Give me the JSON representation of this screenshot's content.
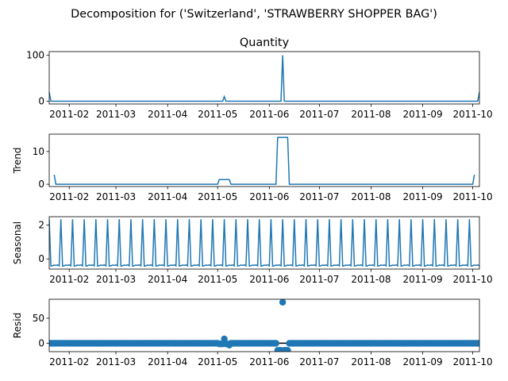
{
  "suptitle": "Decomposition for ('Switzerland', 'STRAWBERRY SHOPPER BAG')",
  "x_tick_labels": [
    "2011-02",
    "2011-03",
    "2011-04",
    "2011-05",
    "2011-06",
    "2011-07",
    "2011-08",
    "2011-09",
    "2011-10"
  ],
  "colors": {
    "line": "#1f77b4",
    "resid_zero": "#000000"
  },
  "chart_data": [
    {
      "type": "line",
      "title": "Quantity",
      "ylabel": "",
      "x_start": "2011-01-20",
      "x_end": "2011-10-05",
      "ylim": [
        -6,
        108
      ],
      "yticks": [
        0,
        100
      ],
      "series": [
        {
          "values_default": 0,
          "points": [
            {
              "x": "2011-01-20",
              "y": 20
            },
            {
              "x": "2011-01-21",
              "y": 0
            },
            {
              "x": "2011-05-04",
              "y": 0
            },
            {
              "x": "2011-05-05",
              "y": 10
            },
            {
              "x": "2011-05-06",
              "y": 0
            },
            {
              "x": "2011-06-08",
              "y": 0
            },
            {
              "x": "2011-06-09",
              "y": 100
            },
            {
              "x": "2011-06-10",
              "y": 0
            },
            {
              "x": "2011-10-04",
              "y": 0
            },
            {
              "x": "2011-10-05",
              "y": 20
            }
          ]
        }
      ]
    },
    {
      "type": "line",
      "title": "",
      "ylabel": "Trend",
      "ylim": [
        -0.7,
        15.3
      ],
      "yticks": [
        0,
        10
      ],
      "series": [
        {
          "points": [
            {
              "x": "2011-01-23",
              "y": 2.9
            },
            {
              "x": "2011-01-24",
              "y": 0
            },
            {
              "x": "2011-05-01",
              "y": 0
            },
            {
              "x": "2011-05-02",
              "y": 1.43
            },
            {
              "x": "2011-05-08",
              "y": 1.43
            },
            {
              "x": "2011-05-09",
              "y": 0
            },
            {
              "x": "2011-06-05",
              "y": 0
            },
            {
              "x": "2011-06-06",
              "y": 14.3
            },
            {
              "x": "2011-06-12",
              "y": 14.3
            },
            {
              "x": "2011-06-13",
              "y": 0
            },
            {
              "x": "2011-10-01",
              "y": 0
            },
            {
              "x": "2011-10-02",
              "y": 2.9
            }
          ]
        }
      ]
    },
    {
      "type": "line",
      "title": "",
      "ylabel": "Seasonal",
      "ylim": [
        -0.6,
        2.5
      ],
      "yticks": [
        0,
        2
      ],
      "period_days": 7,
      "series": [
        {
          "pattern": [
            2.35,
            -0.42,
            -0.4,
            -0.36,
            -0.38,
            -0.35,
            -0.41
          ]
        }
      ]
    },
    {
      "type": "scatter",
      "title": "",
      "ylabel": "Resid",
      "ylim": [
        -17,
        88
      ],
      "yticks": [
        0,
        50
      ],
      "baseline": 0,
      "series": [
        {
          "default": -0.3,
          "points": [
            {
              "x": "2011-05-02",
              "y": -1.5
            },
            {
              "x": "2011-05-03",
              "y": -1.5
            },
            {
              "x": "2011-05-04",
              "y": -1.5
            },
            {
              "x": "2011-05-05",
              "y": 8.6
            },
            {
              "x": "2011-05-06",
              "y": -1.5
            },
            {
              "x": "2011-05-07",
              "y": -1.5
            },
            {
              "x": "2011-05-08",
              "y": -4.0
            },
            {
              "x": "2011-06-06",
              "y": -14.3
            },
            {
              "x": "2011-06-07",
              "y": -14.3
            },
            {
              "x": "2011-06-08",
              "y": -14.3
            },
            {
              "x": "2011-06-09",
              "y": 82
            },
            {
              "x": "2011-06-10",
              "y": -14.3
            },
            {
              "x": "2011-06-11",
              "y": -14.3
            },
            {
              "x": "2011-06-12",
              "y": -14.3
            }
          ]
        }
      ]
    }
  ]
}
